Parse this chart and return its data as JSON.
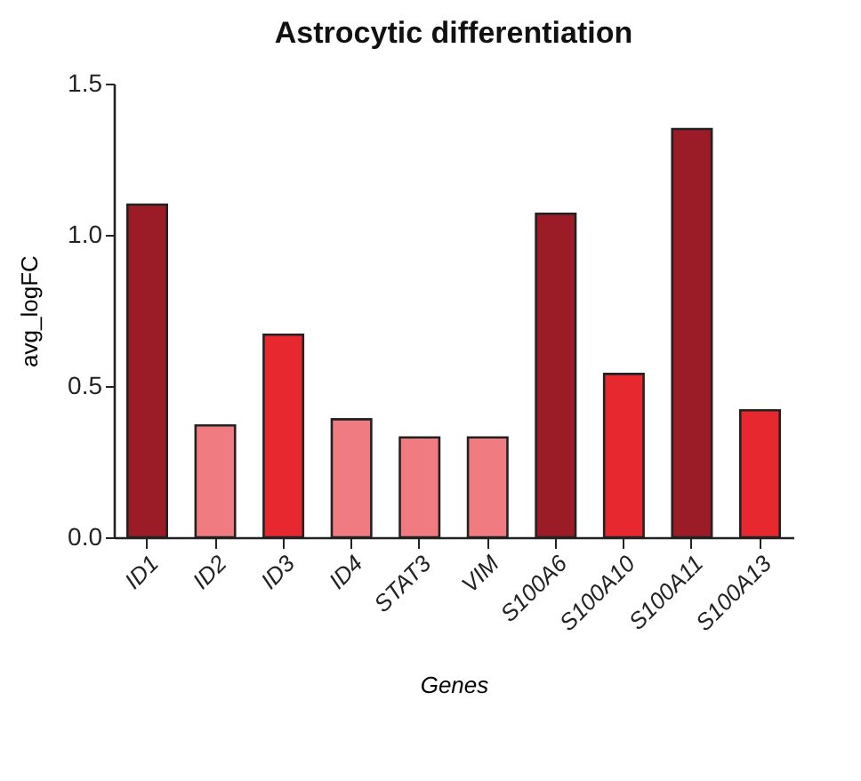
{
  "chart_data": {
    "type": "bar",
    "title": "Astrocytic differentiation",
    "xlabel": "Genes",
    "ylabel": "avg_logFC",
    "categories": [
      "ID1",
      "ID2",
      "ID3",
      "ID4",
      "STAT3",
      "VIM",
      "S100A6",
      "S100A10",
      "S100A11",
      "S100A13"
    ],
    "values": [
      1.1,
      0.37,
      0.67,
      0.39,
      0.33,
      0.33,
      1.07,
      0.54,
      1.35,
      0.42
    ],
    "colors": [
      "#9b1b27",
      "#f07b80",
      "#e8282f",
      "#f07b80",
      "#f07b80",
      "#f07b80",
      "#9b1b27",
      "#e8282f",
      "#9b1b27",
      "#e8282f"
    ],
    "ylim": [
      0,
      1.5
    ],
    "yticks": [
      {
        "value": 0,
        "label": "0.0"
      },
      0.5,
      {
        "value": 1,
        "label": "1.0"
      },
      1.5
    ],
    "grid": false
  }
}
